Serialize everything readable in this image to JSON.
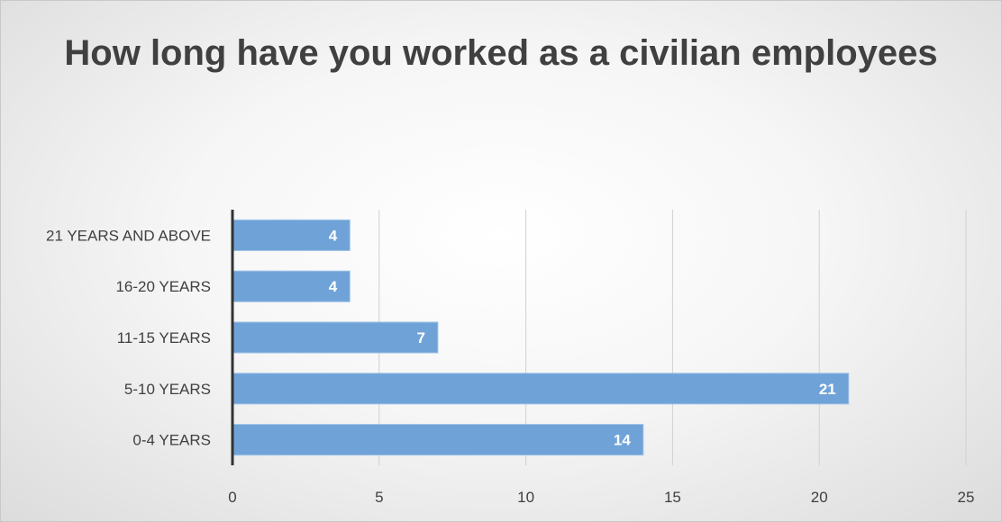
{
  "chart_data": {
    "type": "bar",
    "orientation": "horizontal",
    "title": "How long have you worked as a civilian employees",
    "categories": [
      "21 YEARS AND ABOVE",
      "16-20 YEARS",
      "11-15 YEARS",
      "5-10 YEARS",
      "0-4 YEARS"
    ],
    "values": [
      4,
      4,
      7,
      21,
      14
    ],
    "data_labels": [
      "4",
      "4",
      "7",
      "21",
      "14"
    ],
    "x_ticks": [
      "0",
      "5",
      "10",
      "15",
      "20",
      "25"
    ],
    "xlim": [
      0,
      25
    ],
    "grid": true,
    "bar_color": "#6fa3d8"
  }
}
